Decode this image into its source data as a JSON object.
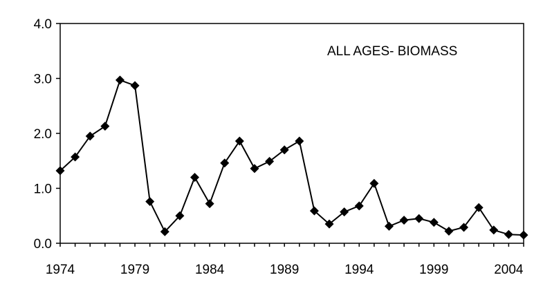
{
  "chart_data": {
    "type": "line",
    "annotation": "ALL AGES- BIOMASS",
    "x_ticks": [
      "1974",
      "1979",
      "1984",
      "1989",
      "1994",
      "1999",
      "2004"
    ],
    "y_ticks": [
      "0.0",
      "1.0",
      "2.0",
      "3.0",
      "4.0"
    ],
    "xlim": [
      1974,
      2005
    ],
    "ylim": [
      0,
      4
    ],
    "grid": false,
    "marker": "diamond",
    "color": "#000000",
    "x": [
      1974,
      1975,
      1976,
      1977,
      1978,
      1979,
      1980,
      1981,
      1982,
      1983,
      1984,
      1985,
      1986,
      1987,
      1988,
      1989,
      1990,
      1991,
      1992,
      1993,
      1994,
      1995,
      1996,
      1997,
      1998,
      1999,
      2000,
      2001,
      2002,
      2003,
      2004,
      2005
    ],
    "y": [
      1.32,
      1.57,
      1.95,
      2.13,
      2.97,
      2.87,
      0.76,
      0.21,
      0.5,
      1.2,
      0.72,
      1.46,
      1.86,
      1.36,
      1.49,
      1.7,
      1.86,
      0.59,
      0.35,
      0.57,
      0.68,
      1.09,
      0.31,
      0.42,
      0.45,
      0.38,
      0.22,
      0.29,
      0.65,
      0.24,
      0.16,
      0.15
    ]
  }
}
